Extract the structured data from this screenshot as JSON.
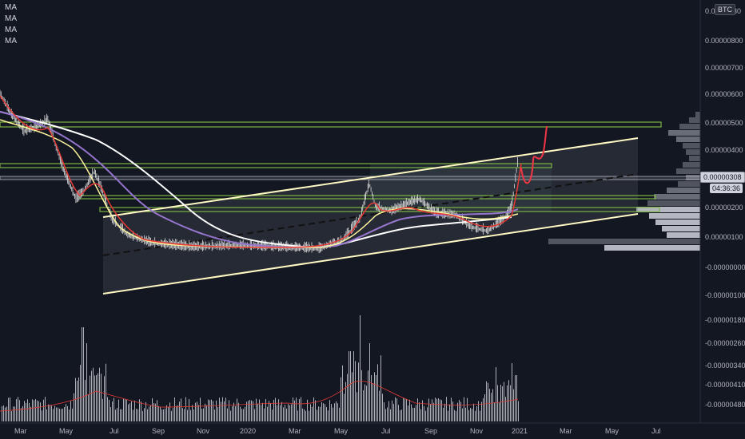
{
  "legend": {
    "items": [
      "MA",
      "MA",
      "MA",
      "MA"
    ]
  },
  "symbol_badge": "BTC",
  "price_axis": {
    "labels": [
      "0.0000   30",
      "0.00000800",
      "0.00000700",
      "0.00000600",
      "0.00000500",
      "0.00000400",
      "0.00000308",
      "0.00000200",
      "0.00000100",
      "-0.00000000",
      "-0.00000100",
      "-0.00000180",
      "-0.00000260",
      "-0.00000340",
      "-0.00000410",
      "-0.00000480"
    ],
    "current_price": "0.00000308",
    "countdown": "04:36:36"
  },
  "time_axis": {
    "labels": [
      "Mar",
      "May",
      "Jul",
      "Sep",
      "Nov",
      "2020",
      "Mar",
      "May",
      "Jul",
      "Sep",
      "Nov",
      "2021",
      "Mar",
      "May",
      "Jul"
    ]
  },
  "colors": {
    "background": "#131722",
    "price_line": "#e0e0e0",
    "ma_red": "#e53935",
    "ma_yellow": "#fff59d",
    "ma_purple": "#9575cd",
    "ma_white": "#ffffff",
    "channel": "#fff9c4",
    "zone_green": "#7cb342",
    "volume": "#c9cbd1",
    "projection": "#f23645"
  }
}
